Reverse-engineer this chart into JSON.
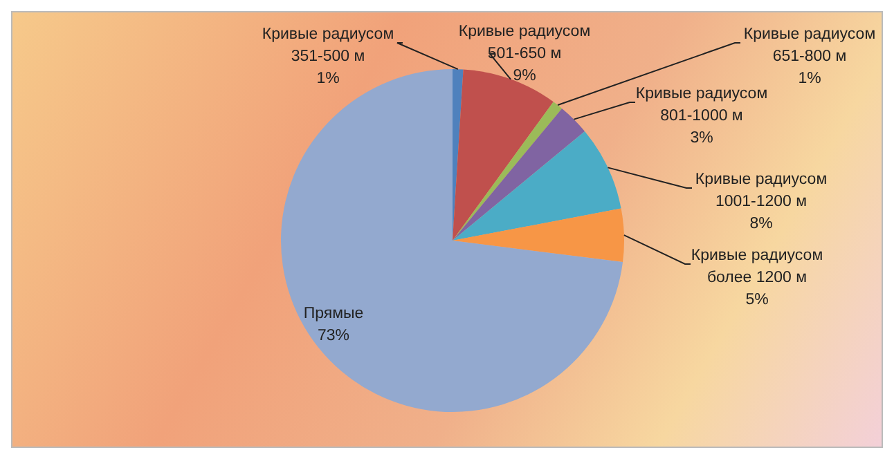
{
  "chart_data": {
    "type": "pie",
    "categories": [
      "Кривые радиусом 351-500 м",
      "Кривые радиусом 501-650 м",
      "Кривые радиусом 651-800 м",
      "Кривые радиусом 801-1000 м",
      "Кривые радиусом 1001-1200 м",
      "Кривые радиусом более 1200 м",
      "Прямые"
    ],
    "values": [
      1,
      9,
      1,
      3,
      8,
      5,
      73
    ],
    "value_labels": [
      "1%",
      "9%",
      "1%",
      "3%",
      "8%",
      "5%",
      "73%"
    ],
    "colors": [
      "#4f81bd",
      "#c0504d",
      "#9bbb59",
      "#8064a2",
      "#4bacc6",
      "#f79646",
      "#93a9cf"
    ],
    "legend": false
  }
}
